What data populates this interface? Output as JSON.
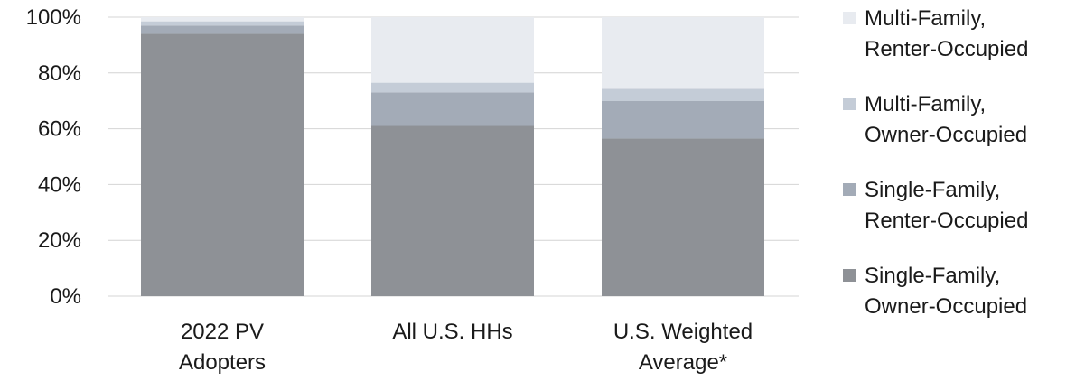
{
  "chart_data": {
    "type": "bar",
    "stacked": true,
    "categories": [
      [
        "2022 PV",
        "Adopters"
      ],
      [
        "All U.S. HHs"
      ],
      [
        "U.S. Weighted",
        "Average*"
      ]
    ],
    "series": [
      {
        "name": [
          "Single-Family,",
          "Owner-Occupied"
        ],
        "color": "#8e9196",
        "values": [
          94,
          61,
          56.5
        ]
      },
      {
        "name": [
          "Single-Family,",
          "Renter-Occupied"
        ],
        "color": "#a3abb7",
        "values": [
          3,
          12,
          13.5
        ]
      },
      {
        "name": [
          "Multi-Family,",
          "Owner-Occupied"
        ],
        "color": "#c4ccd7",
        "values": [
          1.5,
          3.5,
          4.3
        ]
      },
      {
        "name": [
          "Multi-Family,",
          "Renter-Occupied"
        ],
        "color": "#e8ebf0",
        "values": [
          1.5,
          23.5,
          25.7
        ]
      }
    ],
    "ylim": [
      0,
      100
    ],
    "yticks": [
      0,
      20,
      40,
      60,
      80,
      100
    ],
    "ytick_labels": [
      "0%",
      "20%",
      "40%",
      "60%",
      "80%",
      "100%"
    ],
    "grid": true,
    "legend": "right",
    "legend_order": [
      3,
      2,
      1,
      0
    ]
  }
}
